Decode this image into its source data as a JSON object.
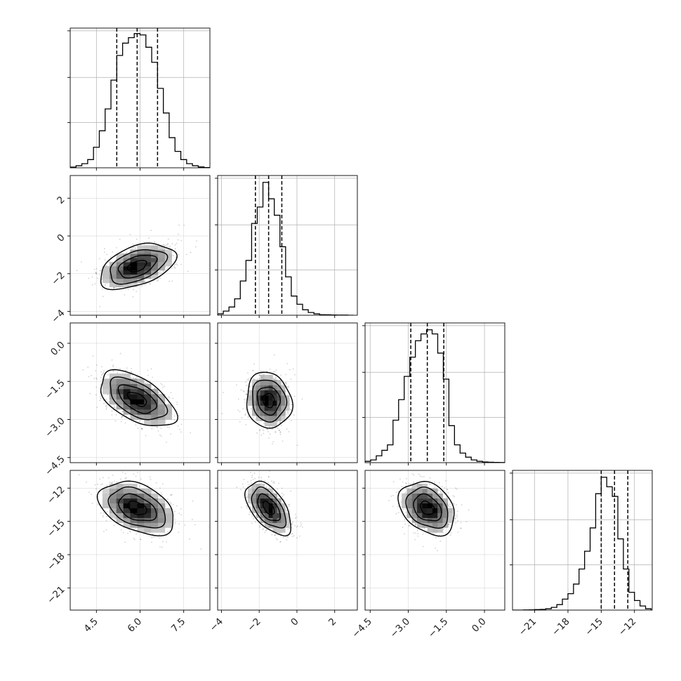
{
  "chart_data": {
    "type": "corner",
    "parameters": [
      {
        "range": [
          3.6,
          8.4
        ],
        "ticks": [
          4.5,
          6.0,
          7.5
        ],
        "tick_labels": [
          "4.5",
          "6.0",
          "7.5"
        ],
        "quantiles": [
          5.2,
          5.9,
          6.6
        ],
        "hist_edges": [
          3.6,
          3.8,
          4.0,
          4.2,
          4.4,
          4.6,
          4.8,
          5.0,
          5.2,
          5.4,
          5.6,
          5.8,
          6.0,
          6.2,
          6.4,
          6.6,
          6.8,
          7.0,
          7.2,
          7.4,
          7.6,
          7.8,
          8.0,
          8.2,
          8.4
        ],
        "hist_values": [
          0.005,
          0.015,
          0.03,
          0.06,
          0.15,
          0.27,
          0.43,
          0.64,
          0.82,
          0.91,
          0.95,
          0.98,
          0.97,
          0.88,
          0.77,
          0.58,
          0.4,
          0.22,
          0.12,
          0.06,
          0.03,
          0.015,
          0.006,
          0.002
        ],
        "hist_ylim": [
          0,
          1.02
        ]
      },
      {
        "range": [
          -4.2,
          3.2
        ],
        "ticks": [
          -4,
          -2,
          0,
          2
        ],
        "tick_labels": [
          "−4",
          "−2",
          "0",
          "2"
        ],
        "quantiles": [
          -2.2,
          -1.5,
          -0.8
        ],
        "hist_edges": [
          -4.2,
          -3.9,
          -3.6,
          -3.3,
          -3.0,
          -2.7,
          -2.4,
          -2.1,
          -1.8,
          -1.5,
          -1.2,
          -0.9,
          -0.6,
          -0.3,
          0.0,
          0.3,
          0.6,
          0.9,
          1.2,
          1.5,
          1.8,
          2.1,
          2.4,
          2.7,
          3.0
        ],
        "hist_values": [
          0.01,
          0.03,
          0.06,
          0.12,
          0.25,
          0.4,
          0.67,
          0.79,
          0.97,
          0.85,
          0.73,
          0.5,
          0.28,
          0.14,
          0.08,
          0.04,
          0.02,
          0.01,
          0.004,
          0.003,
          0.002,
          0.001,
          0.001,
          0.0
        ],
        "hist_ylim": [
          0,
          1.02
        ]
      },
      {
        "range": [
          -4.7,
          0.8
        ],
        "ticks": [
          -4.5,
          -3.0,
          -1.5,
          0.0
        ],
        "tick_labels": [
          "−4.5",
          "−3.0",
          "−1.5",
          "0.0"
        ],
        "quantiles": [
          -2.9,
          -2.25,
          -1.6
        ],
        "hist_edges": [
          -4.7,
          -4.48,
          -4.26,
          -4.04,
          -3.82,
          -3.6,
          -3.38,
          -3.16,
          -2.94,
          -2.72,
          -2.5,
          -2.28,
          -2.06,
          -1.84,
          -1.62,
          -1.4,
          -1.18,
          -0.96,
          -0.74,
          -0.52,
          -0.3,
          -0.08,
          0.14,
          0.36,
          0.58,
          0.8
        ],
        "hist_values": [
          0.01,
          0.02,
          0.05,
          0.09,
          0.13,
          0.31,
          0.46,
          0.63,
          0.77,
          0.89,
          0.94,
          0.97,
          0.94,
          0.8,
          0.61,
          0.27,
          0.13,
          0.07,
          0.04,
          0.02,
          0.01,
          0.005,
          0.003,
          0.002,
          0.001
        ],
        "hist_ylim": [
          0,
          1.02
        ]
      },
      {
        "range": [
          -23.0,
          -10.4
        ],
        "ticks": [
          -21,
          -18,
          -15,
          -12
        ],
        "tick_labels": [
          "−21",
          "−18",
          "−15",
          "−12"
        ],
        "quantiles": [
          -15.0,
          -13.8,
          -12.6
        ],
        "hist_edges": [
          -23.0,
          -22.5,
          -22.0,
          -21.5,
          -21.0,
          -20.5,
          -20.0,
          -19.5,
          -19.0,
          -18.5,
          -18.0,
          -17.5,
          -17.0,
          -16.5,
          -16.0,
          -15.5,
          -15.0,
          -14.5,
          -14.0,
          -13.5,
          -13.0,
          -12.5,
          -12.0,
          -11.5,
          -11.0,
          -10.5
        ],
        "hist_values": [
          0.0,
          0.0,
          0.001,
          0.002,
          0.004,
          0.005,
          0.01,
          0.02,
          0.04,
          0.08,
          0.12,
          0.19,
          0.3,
          0.43,
          0.6,
          0.85,
          0.97,
          0.9,
          0.83,
          0.52,
          0.3,
          0.13,
          0.07,
          0.03,
          0.01
        ],
        "hist_ylim": [
          0,
          1.02
        ]
      }
    ],
    "pairs": [
      {
        "row": 1,
        "col": 0,
        "mean": [
          5.9,
          -1.6
        ],
        "sd": [
          0.65,
          0.6
        ],
        "corr": 0.45
      },
      {
        "row": 2,
        "col": 0,
        "mean": [
          5.9,
          -2.2
        ],
        "sd": [
          0.65,
          0.55
        ],
        "corr": -0.55
      },
      {
        "row": 2,
        "col": 1,
        "mean": [
          -1.5,
          -2.25
        ],
        "sd": [
          0.6,
          0.55
        ],
        "corr": -0.1
      },
      {
        "row": 3,
        "col": 0,
        "mean": [
          5.9,
          -13.8
        ],
        "sd": [
          0.65,
          1.2
        ],
        "corr": -0.4
      },
      {
        "row": 3,
        "col": 1,
        "mean": [
          -1.5,
          -13.8
        ],
        "sd": [
          0.6,
          1.2
        ],
        "corr": -0.55
      },
      {
        "row": 3,
        "col": 2,
        "mean": [
          -2.25,
          -13.8
        ],
        "sd": [
          0.55,
          1.2
        ],
        "corr": -0.3
      }
    ],
    "contour_levels_sigma": [
      0.5,
      1.0,
      1.5,
      2.0
    ],
    "grid": true,
    "colors": {
      "line": "#000000",
      "grid": "#b0b0b0",
      "points": "#000000"
    }
  }
}
